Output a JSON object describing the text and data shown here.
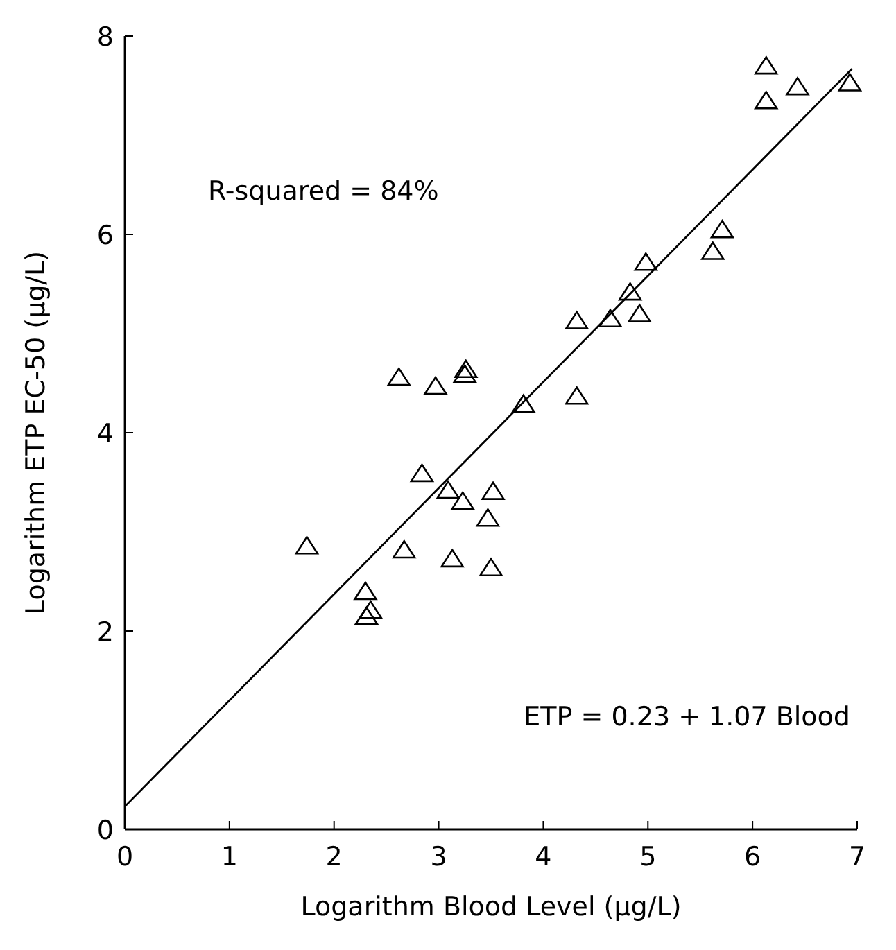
{
  "chart_data": {
    "type": "scatter",
    "xlabel": "Logarithm Blood Level (µg/L)",
    "ylabel": "Logarithm ETP EC-50 (µg/L)",
    "xlim": [
      0,
      7
    ],
    "ylim": [
      0,
      8
    ],
    "xticks": [
      0,
      1,
      2,
      3,
      4,
      5,
      6,
      7
    ],
    "yticks": [
      0,
      2,
      4,
      6,
      8
    ],
    "grid": false,
    "annotations": [
      "R-squared = 84%",
      "ETP = 0.23 + 1.07 Blood"
    ],
    "series": [
      {
        "color": "#000000",
        "marker": "triangle",
        "x": [
          1.74,
          2.3,
          2.35,
          2.31,
          2.67,
          2.84,
          3.09,
          3.23,
          3.13,
          3.52,
          3.47,
          3.5,
          2.62,
          2.97,
          3.25,
          3.26,
          3.81,
          4.32,
          4.32,
          4.64,
          4.92,
          4.83,
          4.98,
          5.62,
          5.71,
          6.13,
          6.13,
          6.43,
          6.93
        ],
        "values": [
          2.85,
          2.39,
          2.2,
          2.14,
          2.81,
          3.58,
          3.41,
          3.3,
          2.72,
          3.4,
          3.13,
          2.63,
          4.55,
          4.46,
          4.58,
          4.63,
          4.28,
          4.36,
          5.12,
          5.14,
          5.19,
          5.41,
          5.71,
          5.82,
          6.04,
          7.34,
          7.69,
          7.48,
          7.52
        ]
      },
      {
        "type": "line",
        "color": "#000000",
        "marker": "none",
        "x": [
          0,
          6.95
        ],
        "values": [
          0.23,
          7.67
        ]
      }
    ]
  }
}
